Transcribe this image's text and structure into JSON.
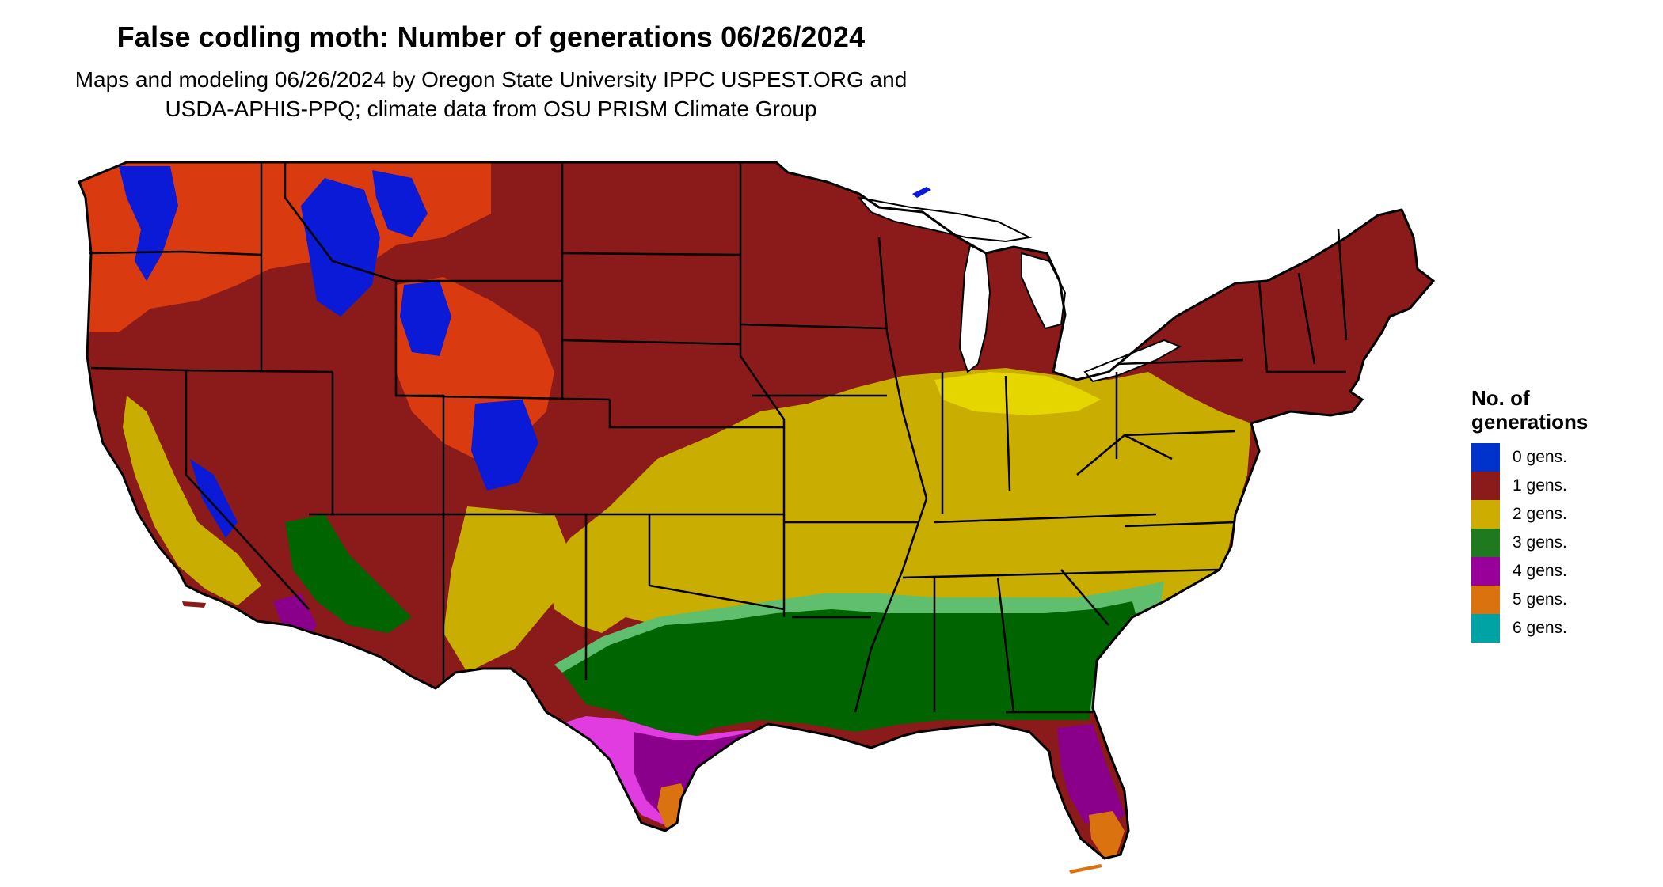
{
  "title": "False codling moth: Number of generations 06/26/2024",
  "subtitle_line1": "Maps and modeling 06/26/2024 by Oregon State University IPPC USPEST.ORG and",
  "subtitle_line2": "USDA-APHIS-PPQ; climate data from OSU PRISM Climate Group",
  "legend": {
    "title_line1": "No. of",
    "title_line2": "generations",
    "items": [
      {
        "label": "0 gens.",
        "color": "#0033cc"
      },
      {
        "label": "1 gens.",
        "color": "#8b1a1a"
      },
      {
        "label": "2 gens.",
        "color": "#ccad00"
      },
      {
        "label": "3 gens.",
        "color": "#1f7a1f"
      },
      {
        "label": "4 gens.",
        "color": "#990099"
      },
      {
        "label": "5 gens.",
        "color": "#d9720f"
      },
      {
        "label": "6 gens.",
        "color": "#00a3a3"
      }
    ]
  },
  "colors": {
    "gens0": "#0a1ad6",
    "gens1": "#8b1a1a",
    "gens1_hot": "#d93a10",
    "gens2": "#c9ad00",
    "gens2_bright": "#e6d600",
    "gens3": "#006400",
    "gens3_light": "#5fbf6f",
    "gens4": "#8b008b",
    "gens4_light": "#e03ce0",
    "gens5": "#d9720f",
    "border": "#000000"
  }
}
